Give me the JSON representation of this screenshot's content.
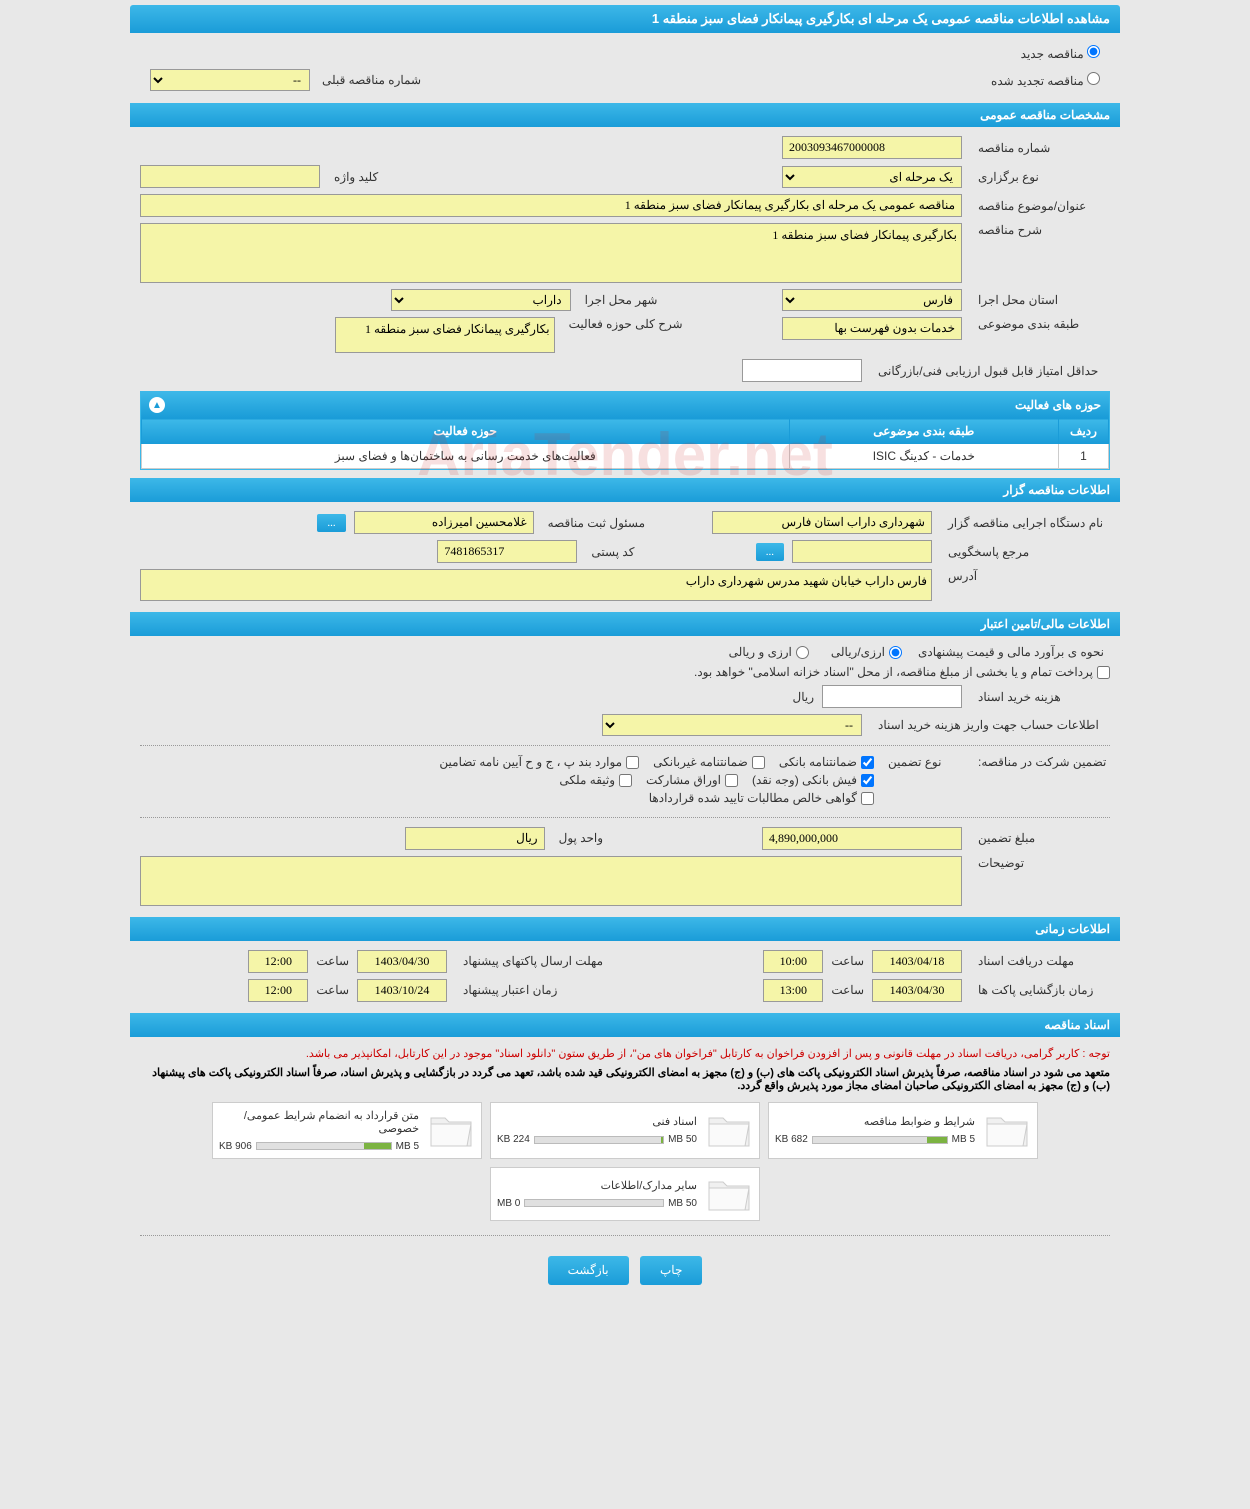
{
  "page_title": "مشاهده اطلاعات مناقصه عمومی یک مرحله ای بکارگیری پیمانکار فضای سبز منطقه 1",
  "radios": {
    "new_tender": "مناقصه جدید",
    "renewed_tender": "مناقصه تجدید شده"
  },
  "prev_tender": {
    "label": "شماره مناقصه قبلی",
    "value": "--"
  },
  "sections": {
    "general": "مشخصات مناقصه عمومی",
    "holder": "اطلاعات مناقصه گزار",
    "financial": "اطلاعات مالی/تامین اعتبار",
    "timing": "اطلاعات زمانی",
    "documents": "اسناد مناقصه"
  },
  "general": {
    "tender_number_label": "شماره مناقصه",
    "tender_number": "2003093467000008",
    "holding_type_label": "نوع برگزاری",
    "holding_type": "یک مرحله ای",
    "keyword_label": "کلید واژه",
    "keyword": "",
    "subject_label": "عنوان/موضوع مناقصه",
    "subject": "مناقصه عمومی یک مرحله ای بکارگیری پیمانکار فضای سبز منطقه 1",
    "description_label": "شرح مناقصه",
    "description": "بکارگیری پیمانکار فضای سبز منطقه 1",
    "province_label": "استان محل اجرا",
    "province": "فارس",
    "city_label": "شهر محل اجرا",
    "city": "داراب",
    "category_label": "طبقه بندی موضوعی",
    "category": "خدمات بدون فهرست بها",
    "activity_desc_label": "شرح کلی حوزه فعالیت",
    "activity_desc": "بکارگیری پیمانکار فضای سبز منطقه 1",
    "min_score_label": "حداقل امتیاز قابل قبول ارزیابی فنی/بازرگانی",
    "min_score": ""
  },
  "activity_panel": {
    "title": "حوزه های فعالیت",
    "columns": [
      "ردیف",
      "طبقه بندی موضوعی",
      "حوزه فعالیت"
    ],
    "rows": [
      [
        "1",
        "خدمات - کدینگ ISIC",
        "فعالیت‌های خدمت رسانی به ساختمان‌ها و فضای سبز"
      ]
    ]
  },
  "holder": {
    "org_label": "نام دستگاه اجرایی مناقصه گزار",
    "org": "شهرداری داراب استان فارس",
    "registrar_label": "مسئول ثبت مناقصه",
    "registrar": "غلامحسین امیرزاده",
    "more_btn": "...",
    "responder_label": "مرجع پاسخگویی",
    "responder": "",
    "postal_label": "کد پستی",
    "postal": "7481865317",
    "address_label": "آدرس",
    "address": "فارس داراب خیابان شهید مدرس شهرداری داراب"
  },
  "financial": {
    "estimate_label": "نحوه ی برآورد مالی و قیمت پیشنهادی",
    "opt_rial": "ارزی/ریالی",
    "opt_currency": "ارزی و ریالی",
    "payment_note": "پرداخت تمام و یا بخشی از مبلغ مناقصه، از محل \"اسناد خزانه اسلامی\" خواهد بود.",
    "doc_fee_label": "هزینه خرید اسناد",
    "doc_fee": "",
    "rial_unit": "ریال",
    "account_label": "اطلاعات حساب جهت واریز هزینه خرید اسناد",
    "account": "--",
    "guarantee_label": "تضمین شرکت در مناقصه:",
    "guarantee_type_label": "نوع تضمین",
    "g_bank": "ضمانتنامه بانکی",
    "g_nonbank": "ضمانتنامه غیربانکی",
    "g_items": "موارد بند پ ، ج و ح آیین نامه تضامین",
    "g_cash": "فیش بانکی (وجه نقد)",
    "g_bonds": "اوراق مشارکت",
    "g_property": "وثیقه ملکی",
    "g_receivables": "گواهی خالص مطالبات تایید شده قراردادها",
    "guarantee_amount_label": "مبلغ تضمین",
    "guarantee_amount": "4,890,000,000",
    "currency_unit_label": "واحد پول",
    "currency_unit": "ریال",
    "notes_label": "توضیحات",
    "notes": ""
  },
  "timing": {
    "doc_deadline_label": "مهلت دریافت اسناد",
    "doc_deadline_date": "1403/04/18",
    "doc_deadline_time": "10:00",
    "packet_send_label": "مهلت ارسال پاکتهای پیشنهاد",
    "packet_send_date": "1403/04/30",
    "packet_send_time": "12:00",
    "opening_label": "زمان بازگشایی پاکت ها",
    "opening_date": "1403/04/30",
    "opening_time": "13:00",
    "validity_label": "زمان اعتبار پیشنهاد",
    "validity_date": "1403/10/24",
    "validity_time": "12:00",
    "time_label": "ساعت"
  },
  "documents": {
    "warning1": "توجه : کاربر گرامی، دریافت اسناد در مهلت قانونی و پس از افزودن فراخوان به کارتابل \"فراخوان های من\"، از طریق ستون \"دانلود اسناد\" موجود در این کارتابل، امکانپذیر می باشد.",
    "warning2": "متعهد می شود در اسناد مناقصه، صرفاً پذیرش اسناد الکترونیکی پاکت های (ب) و (ج) مجهز به امضای الکترونیکی قید شده باشد، تعهد می گردد در بازگشایی و پذیرش اسناد، صرفاً اسناد الکترونیکی پاکت های پیشنهاد (ب) و (ج) مجهز به امضای الکترونیکی صاحبان امضای مجاز مورد پذیرش واقع گردد.",
    "cards": [
      {
        "title": "شرایط و ضوابط مناقصه",
        "size": "682 KB",
        "max": "5 MB",
        "fill": 15
      },
      {
        "title": "اسناد فنی",
        "size": "224 KB",
        "max": "50 MB",
        "fill": 2
      },
      {
        "title": "متن قرارداد به انضمام شرایط عمومی/خصوصی",
        "size": "906 KB",
        "max": "5 MB",
        "fill": 20
      },
      {
        "title": "سایر مدارک/اطلاعات",
        "size": "0 MB",
        "max": "50 MB",
        "fill": 0
      }
    ]
  },
  "footer": {
    "print": "چاپ",
    "back": "بازگشت"
  },
  "watermark": "AriaTender.net",
  "colors": {
    "bar_start": "#3db8e8",
    "bar_end": "#1a9cd8",
    "yellow": "#f5f5a8",
    "bg": "#e8e8e8"
  }
}
